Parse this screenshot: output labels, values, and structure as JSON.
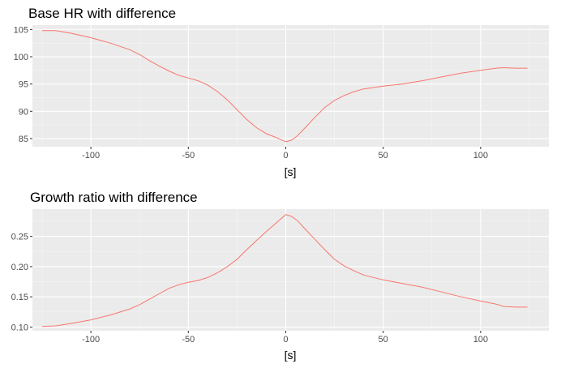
{
  "chart_data": [
    {
      "type": "line",
      "title": "Base HR  with difference",
      "xlabel": "[s]",
      "ylabel": "",
      "xlim": [
        -130,
        135
      ],
      "ylim": [
        83.5,
        105.8
      ],
      "xticks": [
        -100,
        -50,
        0,
        50,
        100
      ],
      "xtick_labels": [
        "-100",
        "-50",
        "0",
        "50",
        "100"
      ],
      "yticks": [
        85,
        90,
        95,
        100,
        105
      ],
      "ytick_labels": [
        "85",
        "90",
        "95",
        "100",
        "105"
      ],
      "grid": true,
      "series_color": "#F8766D",
      "x": [
        -125,
        -118,
        -110,
        -100,
        -90,
        -80,
        -75,
        -70,
        -65,
        -60,
        -55,
        -50,
        -45,
        -40,
        -35,
        -30,
        -25,
        -20,
        -15,
        -10,
        -5,
        0,
        3,
        6,
        10,
        15,
        20,
        25,
        30,
        35,
        40,
        50,
        60,
        70,
        80,
        90,
        100,
        108,
        112,
        118,
        124
      ],
      "y": [
        104.8,
        104.8,
        104.3,
        103.5,
        102.5,
        101.3,
        100.4,
        99.3,
        98.3,
        97.4,
        96.6,
        96.1,
        95.6,
        94.8,
        93.6,
        92.1,
        90.3,
        88.5,
        87.0,
        85.9,
        85.2,
        84.4,
        84.7,
        85.5,
        87.0,
        88.9,
        90.7,
        92.0,
        92.9,
        93.6,
        94.1,
        94.6,
        95.0,
        95.6,
        96.3,
        97.0,
        97.5,
        97.9,
        98.0,
        97.9,
        97.9
      ]
    },
    {
      "type": "line",
      "title": "Growth ratio  with difference",
      "xlabel": "[s]",
      "ylabel": "",
      "xlim": [
        -130,
        135
      ],
      "ylim": [
        0.094,
        0.295
      ],
      "xticks": [
        -100,
        -50,
        0,
        50,
        100
      ],
      "xtick_labels": [
        "-100",
        "-50",
        "0",
        "50",
        "100"
      ],
      "yticks": [
        0.1,
        0.15,
        0.2,
        0.25
      ],
      "ytick_labels": [
        "0.10",
        "0.15",
        "0.20",
        "0.25"
      ],
      "grid": true,
      "series_color": "#F8766D",
      "x": [
        -125,
        -118,
        -110,
        -100,
        -90,
        -80,
        -75,
        -70,
        -65,
        -60,
        -55,
        -50,
        -45,
        -40,
        -35,
        -30,
        -25,
        -20,
        -15,
        -10,
        -5,
        0,
        3,
        6,
        10,
        15,
        20,
        25,
        30,
        35,
        40,
        50,
        60,
        70,
        80,
        90,
        100,
        108,
        112,
        118,
        124
      ],
      "y": [
        0.101,
        0.102,
        0.106,
        0.112,
        0.12,
        0.13,
        0.137,
        0.146,
        0.155,
        0.164,
        0.17,
        0.174,
        0.177,
        0.182,
        0.19,
        0.2,
        0.212,
        0.228,
        0.243,
        0.258,
        0.272,
        0.286,
        0.283,
        0.276,
        0.262,
        0.245,
        0.228,
        0.212,
        0.201,
        0.193,
        0.186,
        0.178,
        0.172,
        0.166,
        0.158,
        0.15,
        0.143,
        0.138,
        0.134,
        0.133,
        0.133
      ]
    }
  ]
}
